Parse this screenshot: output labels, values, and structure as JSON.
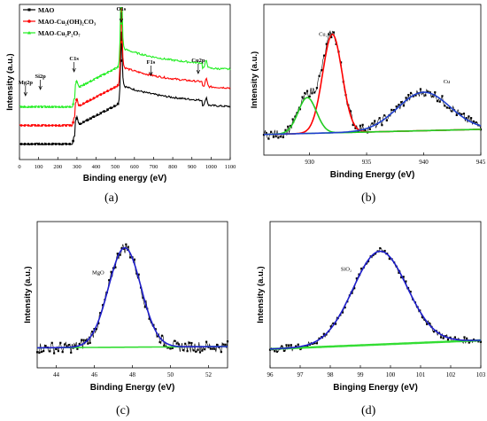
{
  "figure": {
    "captions": [
      "(a)",
      "(b)",
      "(c)",
      "(d)"
    ]
  },
  "chart_data": [
    {
      "id": "a",
      "type": "line",
      "xlabel": "Binding energy (eV)",
      "ylabel": "Intensity (a.u.)",
      "xlim": [
        0,
        1100
      ],
      "xticks": [
        0,
        100,
        200,
        300,
        400,
        500,
        600,
        700,
        800,
        900,
        1000,
        1100
      ],
      "ylim": [
        0,
        1
      ],
      "grid": false,
      "legend_position": "top-left",
      "series": [
        {
          "name": "MAO",
          "color": "#000000",
          "marker": "square",
          "offset": 0.0
        },
        {
          "name": "MAO-Cu₂(OH)₂CO₃",
          "color": "#ff0000",
          "marker": "circle",
          "offset": 0.12
        },
        {
          "name": "MAO-Cu₂P₂O₇",
          "color": "#22ee22",
          "marker": "triangle",
          "offset": 0.24
        }
      ],
      "annotations": [
        {
          "text": "Mg2p",
          "x": 50
        },
        {
          "text": "Si2p",
          "x": 100
        },
        {
          "text": "C1s",
          "x": 285
        },
        {
          "text": "O1s",
          "x": 531
        },
        {
          "text": "F1s",
          "x": 686
        },
        {
          "text": "Cu2p",
          "x": 933
        }
      ]
    },
    {
      "id": "b",
      "type": "line",
      "xlabel": "Binding Energy (eV)",
      "ylabel": "Intensity (a.u.)",
      "xlim": [
        926,
        945
      ],
      "xticks": [
        930,
        935,
        940,
        945
      ],
      "ylim": [
        0,
        1
      ],
      "grid": false,
      "peaks": [
        {
          "label": "Cu₂O",
          "center": 932.0,
          "height": 0.77,
          "sigma": 0.85,
          "color": "#ff0000"
        },
        {
          "label": "",
          "center": 929.8,
          "height": 0.28,
          "sigma": 0.8,
          "color": "#22cc22"
        },
        {
          "label": "Cu",
          "center": 940.0,
          "height": 0.3,
          "sigma": 2.3,
          "color": "#1f3fcc"
        }
      ],
      "baseline": {
        "start": 0.02,
        "end": 0.06
      }
    },
    {
      "id": "c",
      "type": "line",
      "xlabel": "Binding Energy (eV)",
      "ylabel": "Intensity (a.u.)",
      "xlim": [
        43,
        53
      ],
      "xticks": [
        44,
        46,
        48,
        50,
        52
      ],
      "ylim": [
        0,
        1
      ],
      "grid": false,
      "peaks": [
        {
          "label": "MgO",
          "center": 47.6,
          "height": 0.8,
          "sigma": 0.85,
          "color": "#1f1fcc"
        }
      ],
      "baseline": {
        "start": 0.02,
        "end": 0.03
      }
    },
    {
      "id": "d",
      "type": "line",
      "xlabel": "Binging Energy (eV)",
      "ylabel": "Intensity (a.u.)",
      "xlim": [
        96,
        103
      ],
      "xticks": [
        96,
        97,
        98,
        99,
        100,
        101,
        102,
        103
      ],
      "ylim": [
        0,
        1
      ],
      "grid": false,
      "peaks": [
        {
          "label": "SiO₂",
          "center": 99.65,
          "height": 0.75,
          "sigma": 0.9,
          "color": "#1f1fcc"
        }
      ],
      "baseline": {
        "start": 0.01,
        "end": 0.08
      }
    }
  ]
}
